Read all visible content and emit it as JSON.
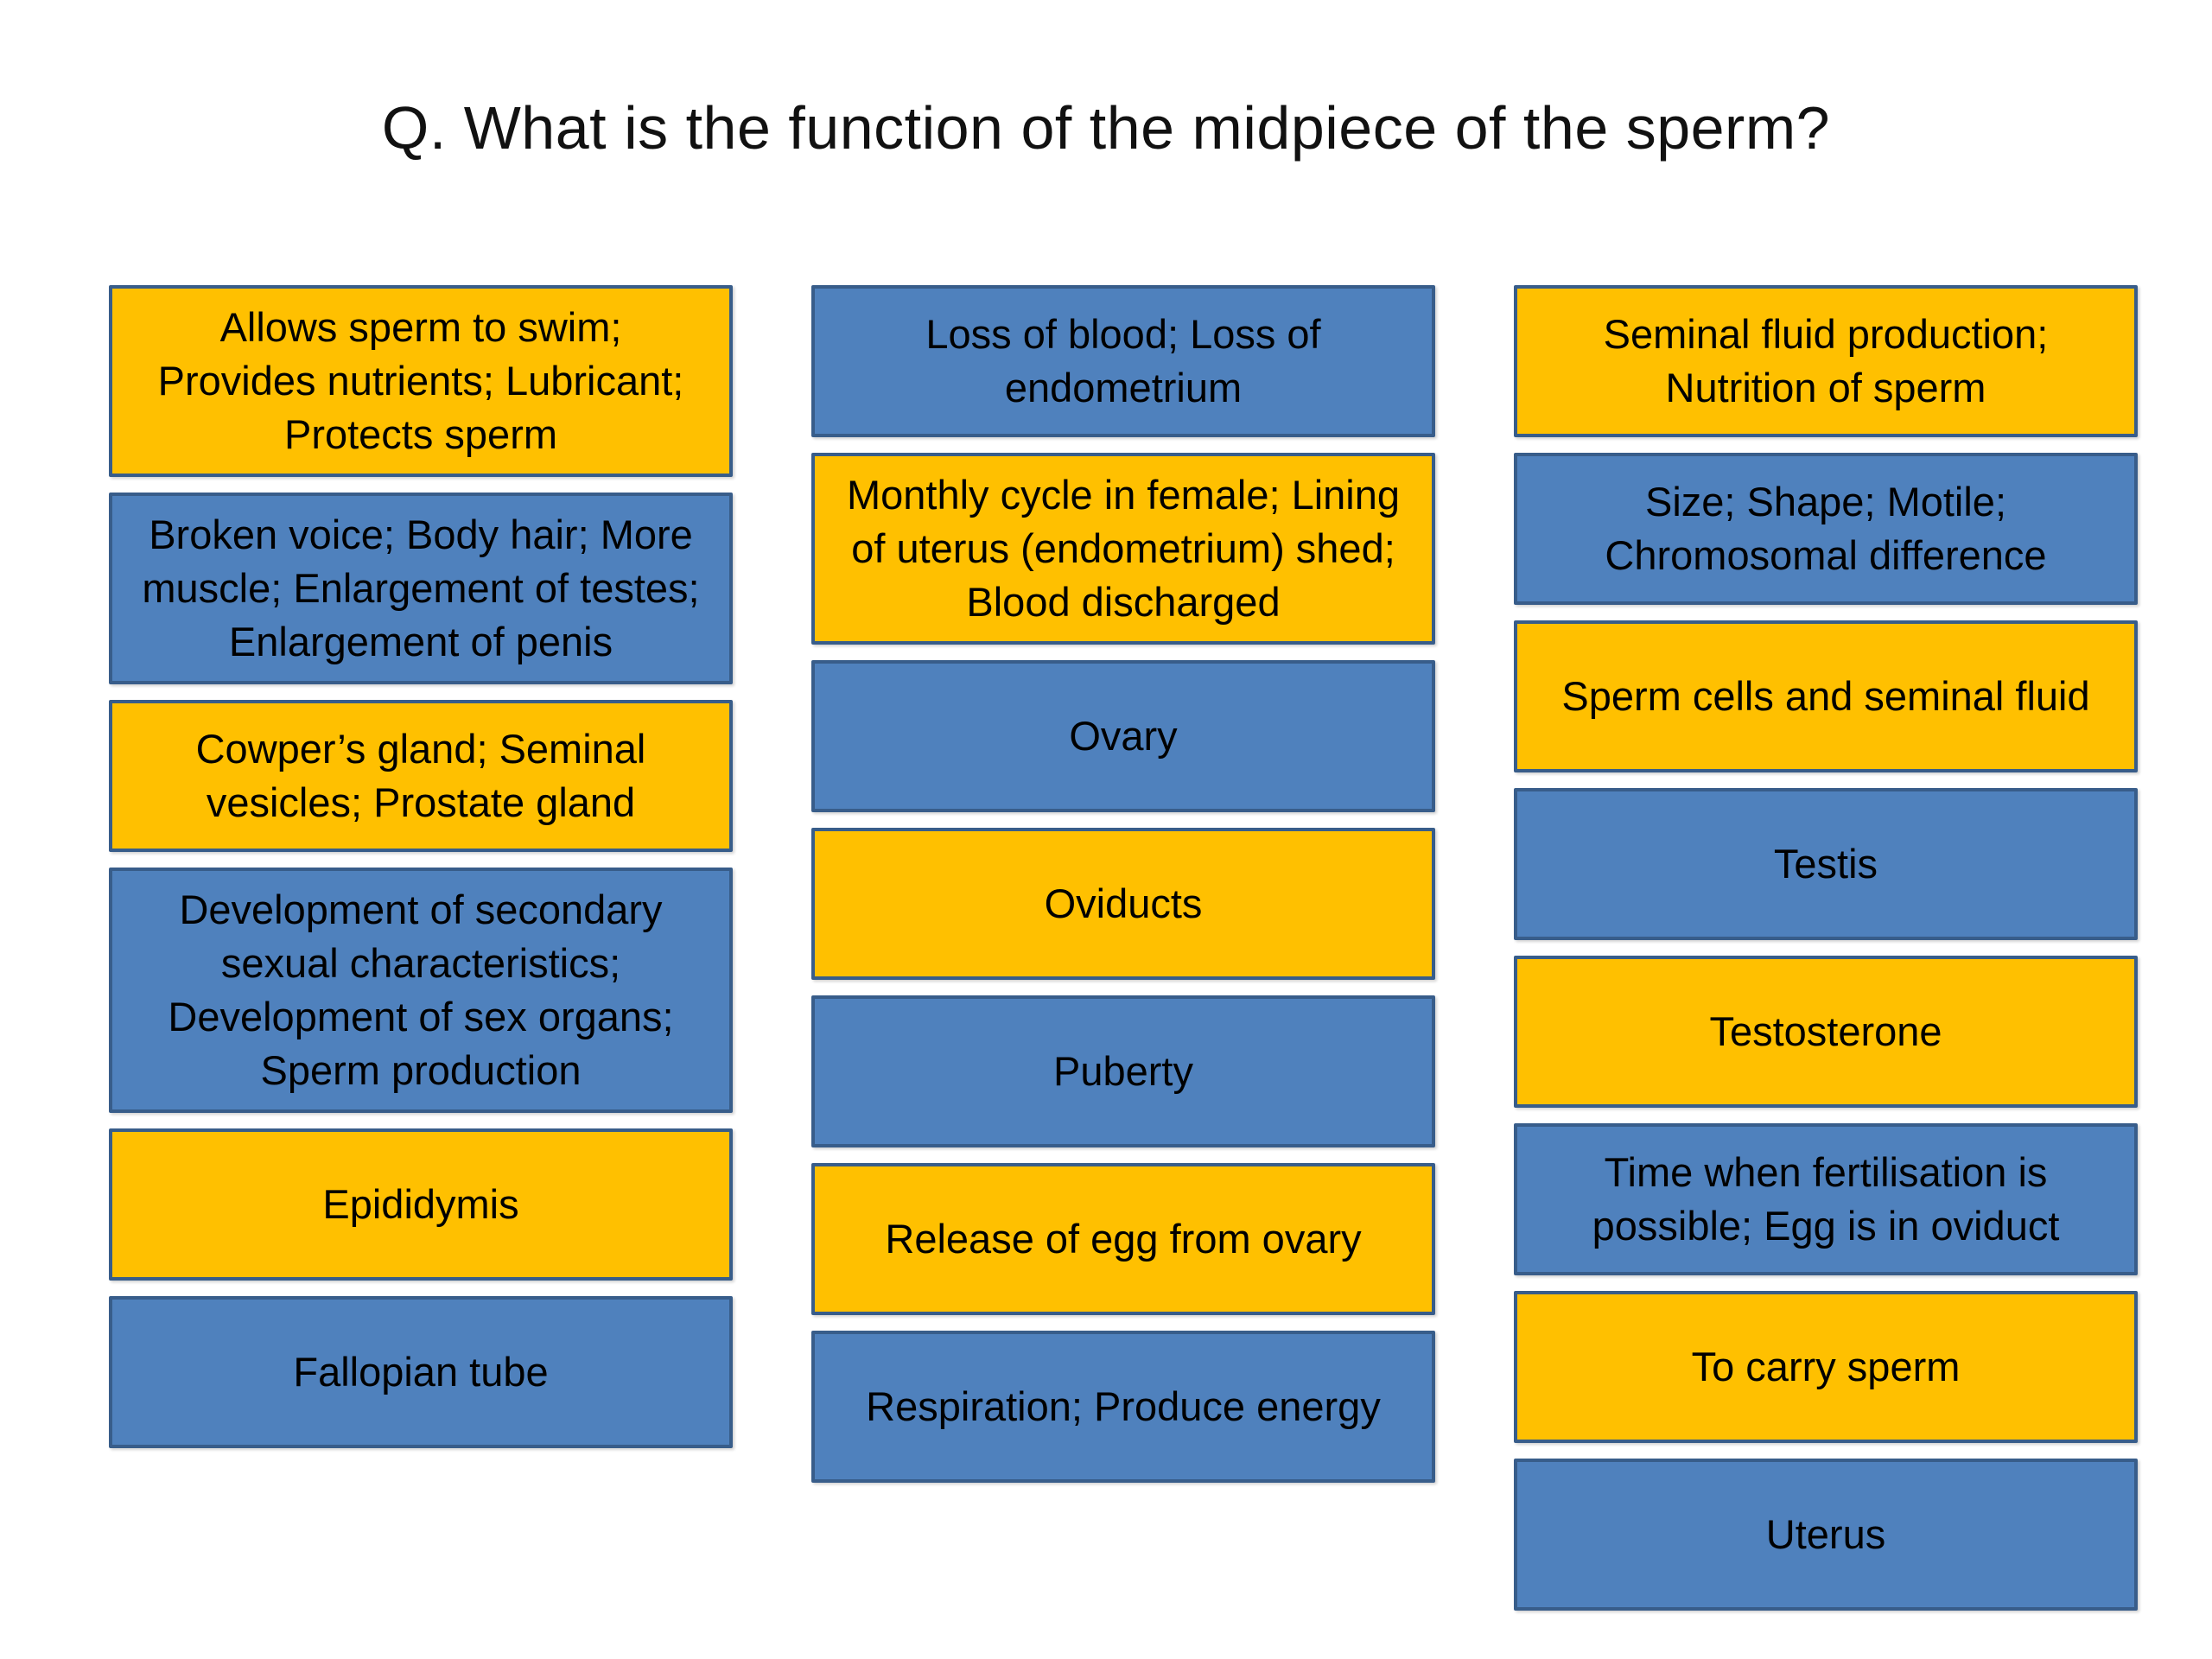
{
  "title": "Q. What is the function of the midpiece of the sperm?",
  "colors": {
    "blue": "#4F81BD",
    "orange": "#FFC000",
    "border": "#385D8A",
    "background": "#FFFFFF"
  },
  "columns": [
    {
      "boxes": [
        {
          "text": "Allows sperm to swim; Provides nutrients; Lubricant; Protects sperm",
          "color": "orange"
        },
        {
          "text": "Broken voice; Body hair; More muscle; Enlargement of testes; Enlargement of penis",
          "color": "blue"
        },
        {
          "text": "Cowper’s gland; Seminal vesicles; Prostate gland",
          "color": "orange"
        },
        {
          "text": "Development of secondary sexual characteristics; Development of sex organs; Sperm production",
          "color": "blue"
        },
        {
          "text": "Epididymis",
          "color": "orange"
        },
        {
          "text": "Fallopian tube",
          "color": "blue"
        }
      ]
    },
    {
      "boxes": [
        {
          "text": "Loss of blood; Loss of endometrium",
          "color": "blue"
        },
        {
          "text": "Monthly cycle in female; Lining of uterus (endometrium) shed; Blood discharged",
          "color": "orange"
        },
        {
          "text": "Ovary",
          "color": "blue"
        },
        {
          "text": "Oviducts",
          "color": "orange"
        },
        {
          "text": "Puberty",
          "color": "blue"
        },
        {
          "text": "Release of egg from ovary",
          "color": "orange"
        },
        {
          "text": "Respiration; Produce energy",
          "color": "blue"
        }
      ]
    },
    {
      "boxes": [
        {
          "text": "Seminal fluid production; Nutrition of sperm",
          "color": "orange"
        },
        {
          "text": "Size; Shape; Motile; Chromosomal difference",
          "color": "blue"
        },
        {
          "text": "Sperm cells and seminal fluid",
          "color": "orange"
        },
        {
          "text": "Testis",
          "color": "blue"
        },
        {
          "text": "Testosterone",
          "color": "orange"
        },
        {
          "text": "Time when fertilisation is possible; Egg is in oviduct",
          "color": "blue"
        },
        {
          "text": "To carry sperm",
          "color": "orange"
        },
        {
          "text": "Uterus",
          "color": "blue"
        }
      ]
    }
  ]
}
